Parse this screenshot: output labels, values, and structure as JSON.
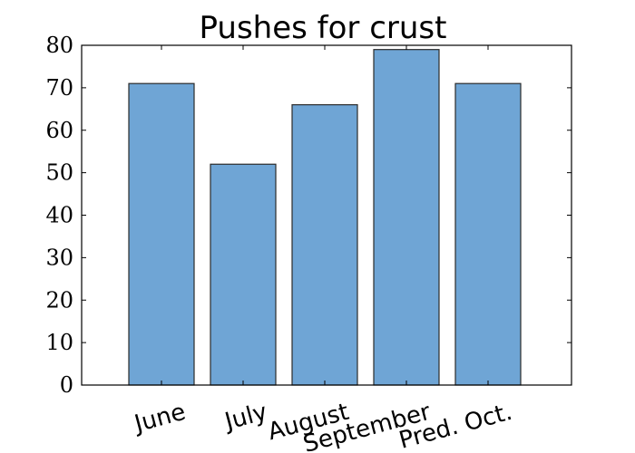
{
  "chart_data": {
    "type": "bar",
    "title": "Pushes for crust",
    "xlabel": "",
    "ylabel": "",
    "categories": [
      "June",
      "July",
      "August",
      "September",
      "Pred. Oct."
    ],
    "values": [
      71,
      52,
      66,
      79,
      71
    ],
    "ylim": [
      0,
      80
    ],
    "yticks": [
      0,
      10,
      20,
      30,
      40,
      50,
      60,
      70,
      80
    ],
    "bar_color": "#6fa5d5",
    "grid": false,
    "legend": "none",
    "x_tick_rotation": "slanted"
  }
}
